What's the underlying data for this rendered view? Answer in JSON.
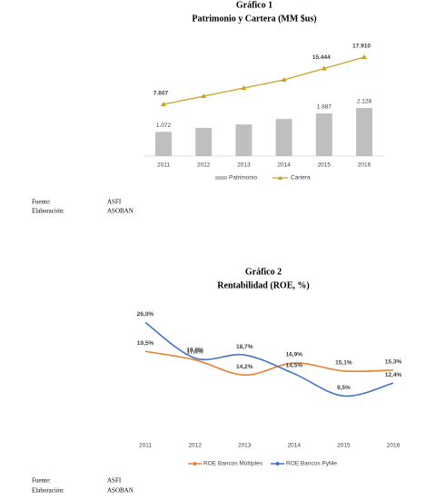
{
  "chart_data": [
    {
      "type": "combo",
      "title": "Gráfico 1",
      "subtitle": "Patrimonio y Cartera (MM $us)",
      "categories": [
        "2011",
        "2012",
        "2013",
        "2014",
        "2015",
        "2016"
      ],
      "series": [
        {
          "name": "Patrimonio",
          "type": "bar",
          "color": "#bfbfbf",
          "values": [
            1072,
            1250,
            1400,
            1640,
            1887,
            2128
          ],
          "value_labels": [
            "1.072",
            null,
            null,
            null,
            "1.887",
            "2.128"
          ],
          "label_color": "#595959"
        },
        {
          "name": "Cartera",
          "type": "line",
          "color": "#c9a227",
          "marker": "triangle",
          "values": [
            7607,
            9390,
            11170,
            12960,
            15444,
            17910
          ],
          "value_labels": [
            "7.607",
            null,
            null,
            null,
            "15.444",
            "17.910"
          ],
          "label_color": "#262626"
        }
      ]
    },
    {
      "type": "line",
      "title": "Gráfico 2",
      "subtitle": "Rentabilidad (ROE, %)",
      "categories": [
        "2011",
        "2012",
        "2013",
        "2014",
        "2015",
        "2016"
      ],
      "series": [
        {
          "name": "ROE Bancos Múltiples",
          "color": "#ed7d31",
          "values": [
            19.5,
            17.6,
            14.2,
            16.9,
            15.1,
            15.3
          ],
          "value_labels": [
            "19,5%",
            "17,6%",
            "14,2%",
            "16,9%",
            "15,1%",
            "15,3%"
          ],
          "label_color": "#e02020"
        },
        {
          "name": "ROE Bancos PyMe",
          "color": "#4472c4",
          "values": [
            26.0,
            18.0,
            18.7,
            14.5,
            9.5,
            12.4
          ],
          "value_labels": [
            "26,0%",
            "18,0%",
            "18,7%",
            "14,5%",
            "9,5%",
            "12,4%"
          ],
          "label_color": "#595959"
        }
      ]
    }
  ],
  "notes": [
    {
      "source_label": "Fuente:",
      "source": "ASFI",
      "prepared_label": "Elaboración:",
      "prepared": "ASOBAN"
    },
    {
      "source_label": "Fuente:",
      "source": "ASFI",
      "prepared_label": "Elaboración:",
      "prepared": "ASOBAN"
    }
  ]
}
